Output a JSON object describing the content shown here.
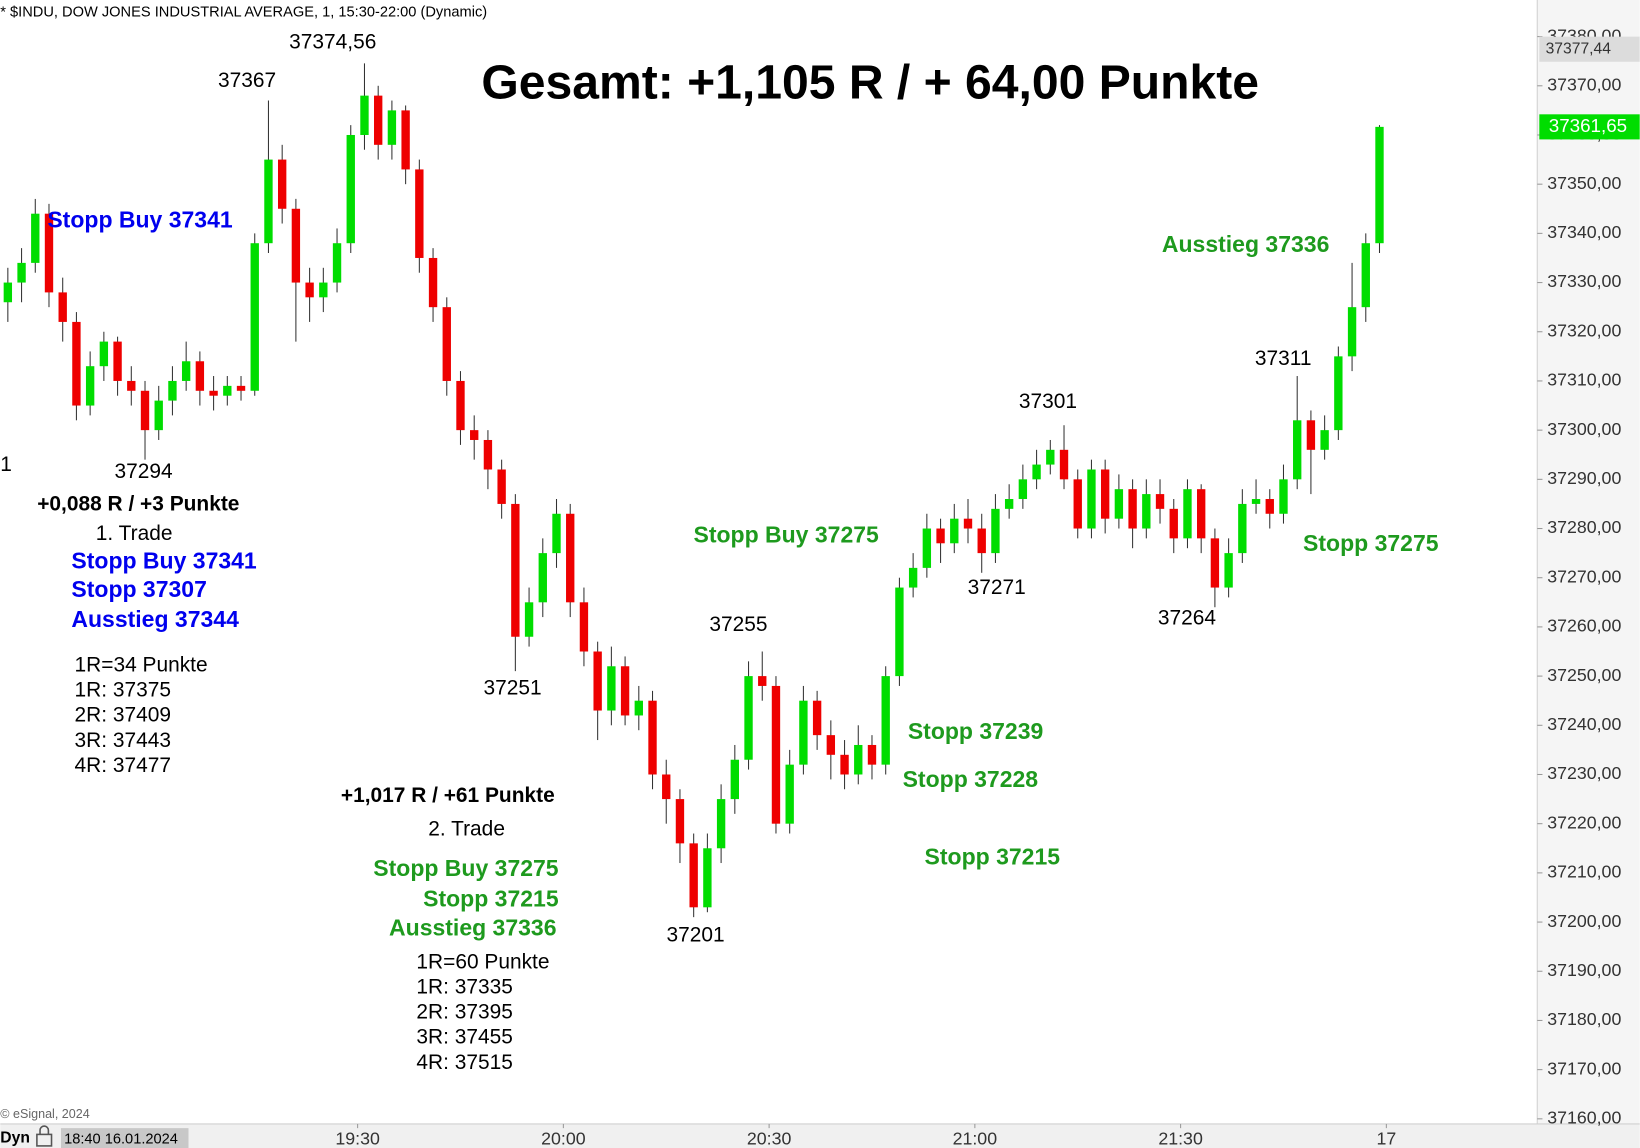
{
  "chart_data": {
    "type": "candlestick",
    "title": "* $INDU, DOW JONES INDUSTRIAL AVERAGE, 1, 15:30-22:00 (Dynamic)",
    "copyright": "© eSignal, 2024",
    "mode_label": "Dyn",
    "cursor_label": "18:40 16.01.2024",
    "up_color": "#00dd00",
    "down_color": "#ee0000",
    "xlim": [
      1117.9,
      1342
    ],
    "ylim": [
      37158.96,
      37387.44
    ],
    "xticks": [
      {
        "value": 1170,
        "label": "19:30"
      },
      {
        "value": 1200,
        "label": "20:00"
      },
      {
        "value": 1230,
        "label": "20:30"
      },
      {
        "value": 1260,
        "label": "21:00"
      },
      {
        "value": 1290,
        "label": "21:30"
      },
      {
        "value": 1320,
        "label": "17"
      }
    ],
    "yticks": [
      {
        "value": 37380,
        "label": "37380,00"
      },
      {
        "value": 37370,
        "label": "37370,00"
      },
      {
        "value": 37360,
        "label": "37360,00"
      },
      {
        "value": 37350,
        "label": "37350,00"
      },
      {
        "value": 37340,
        "label": "37340,00"
      },
      {
        "value": 37330,
        "label": "37330,00"
      },
      {
        "value": 37320,
        "label": "37320,00"
      },
      {
        "value": 37310,
        "label": "37310,00"
      },
      {
        "value": 37300,
        "label": "37300,00"
      },
      {
        "value": 37290,
        "label": "37290,00"
      },
      {
        "value": 37280,
        "label": "37280,00"
      },
      {
        "value": 37270,
        "label": "37270,00"
      },
      {
        "value": 37260,
        "label": "37260,00"
      },
      {
        "value": 37250,
        "label": "37250,00"
      },
      {
        "value": 37240,
        "label": "37240,00"
      },
      {
        "value": 37230,
        "label": "37230,00"
      },
      {
        "value": 37220,
        "label": "37220,00"
      },
      {
        "value": 37210,
        "label": "37210,00"
      },
      {
        "value": 37200,
        "label": "37200,00"
      },
      {
        "value": 37190,
        "label": "37190,00"
      },
      {
        "value": 37180,
        "label": "37180,00"
      },
      {
        "value": 37170,
        "label": "37170,00"
      },
      {
        "value": 37160,
        "label": "37160,00"
      }
    ],
    "markers": [
      {
        "value": 37377.44,
        "label": "37377,44",
        "color": "#dcdcdc"
      },
      {
        "value": 37361.65,
        "label": "37361,65",
        "color": "#00dd00"
      }
    ],
    "x": [
      1119,
      1121,
      1123,
      1125,
      1127,
      1129,
      1131,
      1133,
      1135,
      1137,
      1139,
      1141,
      1143,
      1145,
      1147,
      1149,
      1151,
      1153,
      1155,
      1157,
      1159,
      1161,
      1163,
      1165,
      1167,
      1169,
      1171,
      1173,
      1175,
      1177,
      1179,
      1181,
      1183,
      1185,
      1187,
      1189,
      1191,
      1193,
      1195,
      1197,
      1199,
      1201,
      1203,
      1205,
      1207,
      1209,
      1211,
      1213,
      1215,
      1217,
      1219,
      1221,
      1223,
      1225,
      1227,
      1229,
      1231,
      1233,
      1235,
      1237,
      1239,
      1241,
      1243,
      1245,
      1247,
      1249,
      1251,
      1253,
      1255,
      1257,
      1259,
      1261,
      1263,
      1265,
      1267,
      1269,
      1271,
      1273,
      1275,
      1277,
      1279,
      1281,
      1283,
      1285,
      1287,
      1289,
      1291,
      1293,
      1295,
      1297,
      1299,
      1301,
      1303,
      1305,
      1307,
      1309,
      1311,
      1313,
      1315,
      1317,
      1319
    ],
    "open": [
      37326,
      37330,
      37334,
      37344,
      37328,
      37322,
      37305,
      37313,
      37318,
      37310,
      37308,
      37300,
      37306,
      37310,
      37314,
      37308,
      37307,
      37309,
      37308,
      37338,
      37355,
      37345,
      37330,
      37327,
      37330,
      37338,
      37360,
      37368,
      37358,
      37365,
      37353,
      37335,
      37325,
      37310,
      37300,
      37298,
      37292,
      37285,
      37258,
      37265,
      37275,
      37283,
      37265,
      37255,
      37243,
      37252,
      37242,
      37245,
      37230,
      37225,
      37216,
      37203,
      37215,
      37225,
      37233,
      37250,
      37248,
      37220,
      37232,
      37245,
      37238,
      37234,
      37230,
      37236,
      37232,
      37250,
      37268,
      37272,
      37280,
      37277,
      37282,
      37280,
      37275,
      37284,
      37286,
      37290,
      37293,
      37296,
      37290,
      37280,
      37292,
      37282,
      37288,
      37280,
      37287,
      37284,
      37278,
      37288,
      37278,
      37268,
      37275,
      37285,
      37286,
      37283,
      37290,
      37302,
      37296,
      37300,
      37315,
      37325,
      37338
    ],
    "high": [
      37333,
      37337,
      37347,
      37346,
      37331,
      37324,
      37316,
      37320,
      37319,
      37313,
      37310,
      37309,
      37313,
      37318,
      37316,
      37311,
      37311,
      37311,
      37340,
      37367,
      37358,
      37347,
      37333,
      37333,
      37341,
      37362,
      37374.56,
      37370,
      37367,
      37366,
      37355,
      37337,
      37327,
      37312,
      37303,
      37300,
      37294,
      37287,
      37268,
      37278,
      37286,
      37285,
      37268,
      37257,
      37256,
      37254,
      37248,
      37247,
      37233,
      37227,
      37218,
      37218,
      37228,
      37236,
      37253,
      37255,
      37250,
      37235,
      37248,
      37247,
      37241,
      37237,
      37240,
      37238,
      37252,
      37270,
      37275,
      37283,
      37282,
      37285,
      37286,
      37283,
      37287,
      37289,
      37293,
      37296,
      37298,
      37301,
      37292,
      37294,
      37294,
      37291,
      37290,
      37290,
      37290,
      37286,
      37290,
      37289,
      37280,
      37278,
      37288,
      37290,
      37288,
      37293,
      37311,
      37304,
      37303,
      37317,
      37334,
      37340,
      37362
    ],
    "low": [
      37322,
      37326,
      37332,
      37325,
      37318,
      37302,
      37303,
      37310,
      37307,
      37305,
      37294,
      37298,
      37303,
      37308,
      37305,
      37304,
      37305,
      37306,
      37307,
      37336,
      37342,
      37318,
      37322,
      37324,
      37328,
      37336,
      37357,
      37355,
      37355,
      37350,
      37332,
      37322,
      37307,
      37297,
      37294,
      37288,
      37282,
      37251,
      37256,
      37262,
      37272,
      37262,
      37252,
      37237,
      37240,
      37240,
      37239,
      37227,
      37220,
      37212,
      37201,
      37202,
      37212,
      37222,
      37231,
      37245,
      37218,
      37218,
      37230,
      37235,
      37229,
      37227,
      37228,
      37229,
      37230,
      37248,
      37266,
      37270,
      37273,
      37275,
      37277,
      37271,
      37273,
      37282,
      37284,
      37288,
      37291,
      37288,
      37278,
      37278,
      37279,
      37280,
      37276,
      37278,
      37281,
      37275,
      37276,
      37275,
      37264,
      37266,
      37273,
      37283,
      37280,
      37281,
      37288,
      37287,
      37294,
      37298,
      37312,
      37322,
      37336
    ],
    "close": [
      37330,
      37334,
      37344,
      37328,
      37322,
      37305,
      37313,
      37318,
      37310,
      37308,
      37300,
      37306,
      37310,
      37314,
      37308,
      37307,
      37309,
      37308,
      37338,
      37355,
      37345,
      37330,
      37327,
      37330,
      37338,
      37360,
      37368,
      37358,
      37365,
      37353,
      37335,
      37325,
      37310,
      37300,
      37298,
      37292,
      37285,
      37258,
      37265,
      37275,
      37283,
      37265,
      37255,
      37243,
      37252,
      37242,
      37245,
      37230,
      37225,
      37216,
      37203,
      37215,
      37225,
      37233,
      37250,
      37248,
      37220,
      37232,
      37245,
      37238,
      37234,
      37230,
      37236,
      37232,
      37250,
      37268,
      37272,
      37280,
      37277,
      37282,
      37280,
      37275,
      37284,
      37286,
      37290,
      37293,
      37296,
      37290,
      37280,
      37292,
      37282,
      37288,
      37280,
      37287,
      37284,
      37278,
      37288,
      37278,
      37268,
      37275,
      37285,
      37286,
      37283,
      37290,
      37302,
      37296,
      37300,
      37315,
      37325,
      37338,
      37361.65
    ],
    "annotations": [
      "Gesamt: +1,105 R / + 64,00 Punkte",
      "37374,56",
      "37367",
      "Stopp Buy 37341",
      "1",
      "37294",
      "+0,088 R / +3 Punkte",
      "1. Trade",
      "Stopp Buy 37341",
      "Stopp 37307",
      "Ausstieg 37344",
      "1R=34 Punkte",
      "1R: 37375",
      "2R: 37409",
      "3R: 37443",
      "4R: 37477",
      "37251",
      "+1,017 R / +61 Punkte",
      "2. Trade",
      "Stopp Buy 37275",
      "Stopp 37215",
      "Ausstieg 37336",
      "1R=60 Punkte",
      "1R: 37335",
      "2R: 37395",
      "3R: 37455",
      "4R: 37515",
      "37201",
      "37255",
      "Stopp Buy 37275",
      "Stopp 37239",
      "Stopp 37228",
      "Stopp 37215",
      "37271",
      "37301",
      "37264",
      "37311",
      "Ausstieg 37336",
      "Stopp 37275"
    ]
  }
}
